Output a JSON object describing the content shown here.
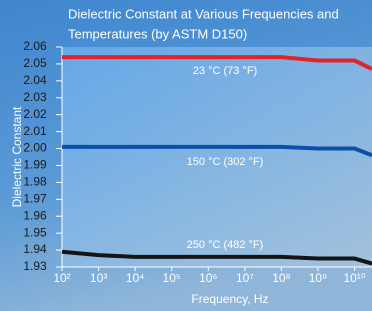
{
  "chart_data": {
    "type": "line",
    "title": [
      "Dielectric Constant at Various Frequencies and",
      "Temperatures (by ASTM D150)"
    ],
    "x_label": "Frequency, Hz",
    "y_label": "Dielectric Constant",
    "log_x": true,
    "x": [
      100,
      1000,
      10000,
      100000,
      1000000,
      10000000,
      100000000,
      1000000000,
      10000000000,
      30000000000
    ],
    "series": [
      {
        "name": "23 °C (73 °F)",
        "color": "#e0232b",
        "values": [
          2.054,
          2.054,
          2.054,
          2.054,
          2.054,
          2.054,
          2.054,
          2.052,
          2.052,
          2.047
        ]
      },
      {
        "name": "150 °C (302 °F)",
        "color": "#0b4fa8",
        "values": [
          2.001,
          2.001,
          2.001,
          2.001,
          2.001,
          2.001,
          2.001,
          2.0,
          2.0,
          1.996
        ]
      },
      {
        "name": "250 °C (482 °F)",
        "color": "#151515",
        "values": [
          1.939,
          1.937,
          1.936,
          1.936,
          1.936,
          1.936,
          1.936,
          1.935,
          1.935,
          1.932
        ]
      }
    ],
    "xlim": [
      100,
      30000000000
    ],
    "xticks": [
      {
        "value": 100,
        "label": "10²"
      },
      {
        "value": 1000,
        "label": "10³"
      },
      {
        "value": 10000,
        "label": "10⁴"
      },
      {
        "value": 100000,
        "label": "10⁵"
      },
      {
        "value": 1000000,
        "label": "10⁶"
      },
      {
        "value": 10000000,
        "label": "10⁷"
      },
      {
        "value": 100000000,
        "label": "10⁸"
      },
      {
        "value": 1000000000,
        "label": "10⁹"
      },
      {
        "value": 10000000000,
        "label": "10¹⁰"
      }
    ],
    "ylim": [
      1.93,
      2.06
    ],
    "yticks": [
      1.93,
      1.94,
      1.95,
      1.96,
      1.97,
      1.98,
      1.99,
      {
        "value": 2,
        "label": "2.00"
      },
      2.01,
      2.02,
      2.03,
      2.04,
      2.05,
      2.06
    ]
  }
}
